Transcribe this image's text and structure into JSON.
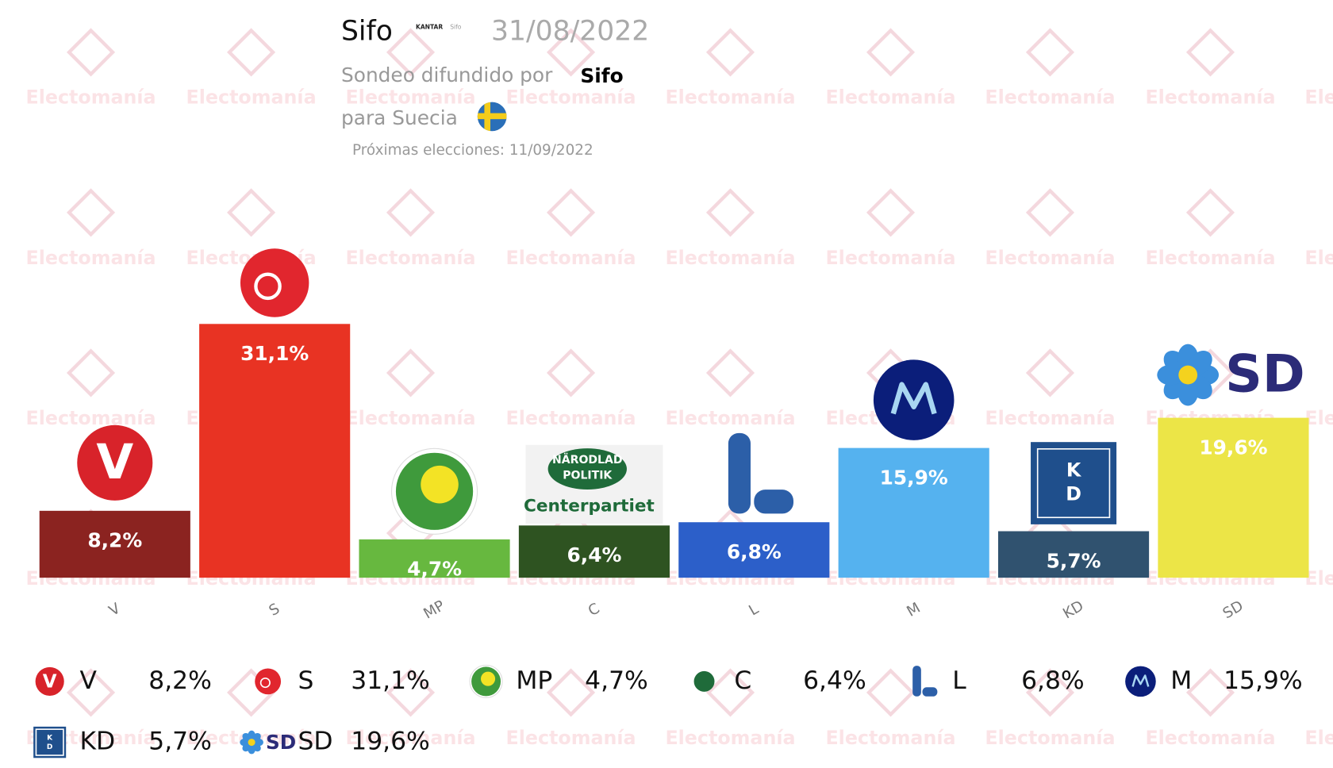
{
  "header": {
    "title": "Sifo",
    "logo_texts": [
      "KANTAR",
      "Sifo"
    ],
    "date": "31/08/2022",
    "subtitle": "Sondeo difundido por",
    "pollster": "Sifo",
    "country": "para Suecia",
    "next_election": "Próximas elecciones: 11/09/2022"
  },
  "watermark": "Electomanía",
  "chart_data": {
    "type": "bar",
    "categories": [
      "V",
      "S",
      "MP",
      "C",
      "L",
      "M",
      "KD",
      "SD"
    ],
    "values": [
      8.2,
      31.1,
      4.7,
      6.4,
      6.8,
      15.9,
      5.7,
      19.6
    ],
    "value_labels": [
      "8,2%",
      "31,1%",
      "4,7%",
      "6,4%",
      "6,8%",
      "15,9%",
      "5,7%",
      "19,6%"
    ],
    "colors": [
      "#8b2320",
      "#e83323",
      "#67b83f",
      "#2e5321",
      "#2c5fc9",
      "#55b2ef",
      "#30526f",
      "#ece547"
    ],
    "logo_texts": {
      "V": [
        "V"
      ],
      "C": [
        "NÄRODLAD",
        "POLITIK",
        "Centerpartiet"
      ],
      "KD": [
        "K",
        "D"
      ],
      "SD": [
        "SD"
      ]
    },
    "legend": true
  }
}
